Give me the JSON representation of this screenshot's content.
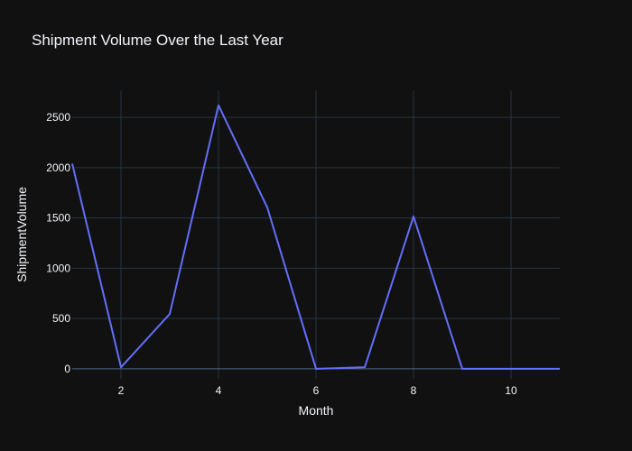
{
  "chart_data": {
    "type": "line",
    "title": "Shipment Volume Over the Last Year",
    "xlabel": "Month",
    "ylabel": "ShipmentVolume",
    "x": [
      1,
      2,
      3,
      4,
      5,
      6,
      7,
      8,
      9,
      10,
      11
    ],
    "series": [
      {
        "values": [
          2040,
          15,
          545,
          2620,
          1605,
          0,
          15,
          1515,
          0,
          0,
          0
        ],
        "color": "#636efa"
      }
    ],
    "xlim": [
      1,
      11
    ],
    "ylim": [
      -100,
      2770
    ],
    "xticks": [
      2,
      4,
      6,
      8,
      10
    ],
    "yticks": [
      0,
      500,
      1000,
      1500,
      2000,
      2500
    ],
    "grid": true,
    "legend": "none",
    "colors": {
      "background": "#111111",
      "grid": "#283442",
      "text": "#f2f5fa"
    }
  }
}
